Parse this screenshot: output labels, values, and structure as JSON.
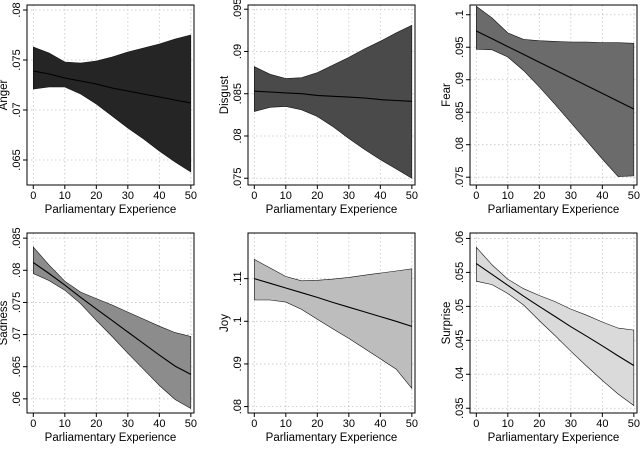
{
  "chart_data": [
    {
      "type": "line",
      "title": "",
      "xlabel": "Parliamentary Experience",
      "ylabel": "Anger",
      "xlim": [
        -2,
        51
      ],
      "ylim": [
        0.0625,
        0.0805
      ],
      "xticks": [
        0,
        10,
        20,
        30,
        40,
        50
      ],
      "xtick_labels": [
        "0",
        "10",
        "20",
        "30",
        "40",
        "50"
      ],
      "yticks": [
        0.065,
        0.07,
        0.075,
        0.08
      ],
      "ytick_labels": [
        ".065",
        ".07",
        ".075",
        ".08"
      ],
      "grid": true,
      "band_color": "#252525",
      "x": [
        0,
        5,
        10,
        15,
        20,
        25,
        30,
        35,
        40,
        45,
        50
      ],
      "y": [
        0.0739,
        0.0736,
        0.0732,
        0.0729,
        0.0726,
        0.0722,
        0.0719,
        0.0716,
        0.0713,
        0.071,
        0.0707
      ],
      "upper": [
        0.0763,
        0.0757,
        0.0748,
        0.0747,
        0.0749,
        0.0753,
        0.0758,
        0.0762,
        0.0766,
        0.0771,
        0.0775
      ],
      "lower": [
        0.0721,
        0.0723,
        0.0723,
        0.0716,
        0.0706,
        0.0694,
        0.0682,
        0.0671,
        0.0659,
        0.0648,
        0.0638
      ]
    },
    {
      "type": "line",
      "title": "",
      "xlabel": "Parliamentary Experience",
      "ylabel": "Disgust",
      "xlim": [
        -2,
        51
      ],
      "ylim": [
        0.0742,
        0.0955
      ],
      "xticks": [
        0,
        10,
        20,
        30,
        40,
        50
      ],
      "xtick_labels": [
        "0",
        "10",
        "20",
        "30",
        "40",
        "50"
      ],
      "yticks": [
        0.075,
        0.08,
        0.085,
        0.09,
        0.095
      ],
      "ytick_labels": [
        ".075",
        ".08",
        ".085",
        ".09",
        ".095"
      ],
      "grid": true,
      "band_color": "#4a4a4a",
      "x": [
        0,
        5,
        10,
        15,
        20,
        25,
        30,
        35,
        40,
        45,
        50
      ],
      "y": [
        0.0853,
        0.0852,
        0.0851,
        0.085,
        0.0848,
        0.0847,
        0.0846,
        0.0845,
        0.0843,
        0.0842,
        0.0841
      ],
      "upper": [
        0.0882,
        0.0873,
        0.0868,
        0.0869,
        0.0875,
        0.0884,
        0.0893,
        0.0903,
        0.0912,
        0.0922,
        0.0931
      ],
      "lower": [
        0.0829,
        0.0834,
        0.0835,
        0.0831,
        0.0823,
        0.0811,
        0.0797,
        0.0784,
        0.0772,
        0.0761,
        0.075
      ]
    },
    {
      "type": "line",
      "title": "",
      "xlabel": "Parliamentary Experience",
      "ylabel": "Fear",
      "xlim": [
        -2,
        51
      ],
      "ylim": [
        0.0738,
        0.1015
      ],
      "xticks": [
        0,
        10,
        20,
        30,
        40,
        50
      ],
      "xtick_labels": [
        "0",
        "10",
        "20",
        "30",
        "40",
        "50"
      ],
      "yticks": [
        0.075,
        0.08,
        0.085,
        0.09,
        0.095,
        0.1
      ],
      "ytick_labels": [
        ".075",
        ".08",
        ".085",
        ".09",
        ".095",
        ".1"
      ],
      "grid": true,
      "band_color": "#6b6b6b",
      "x": [
        0,
        5,
        10,
        15,
        20,
        25,
        30,
        35,
        40,
        45,
        50
      ],
      "y": [
        0.0975,
        0.0963,
        0.0951,
        0.0939,
        0.0927,
        0.0915,
        0.0903,
        0.0891,
        0.0879,
        0.0867,
        0.0855
      ],
      "upper": [
        0.1013,
        0.0995,
        0.0972,
        0.0962,
        0.096,
        0.0959,
        0.0958,
        0.0958,
        0.0957,
        0.0957,
        0.0956
      ],
      "lower": [
        0.0947,
        0.0946,
        0.0935,
        0.0914,
        0.0889,
        0.0862,
        0.0834,
        0.0806,
        0.0778,
        0.0751,
        0.0752
      ]
    },
    {
      "type": "line",
      "title": "",
      "xlabel": "Parliamentary Experience",
      "ylabel": "Sadness",
      "xlim": [
        -2,
        51
      ],
      "ylim": [
        0.0578,
        0.0858
      ],
      "xticks": [
        0,
        10,
        20,
        30,
        40,
        50
      ],
      "xtick_labels": [
        "0",
        "10",
        "20",
        "30",
        "40",
        "50"
      ],
      "yticks": [
        0.06,
        0.065,
        0.07,
        0.075,
        0.08,
        0.085
      ],
      "ytick_labels": [
        ".06",
        ".065",
        ".07",
        ".075",
        ".08",
        ".085"
      ],
      "grid": true,
      "band_color": "#8c8c8c",
      "x": [
        0,
        5,
        10,
        15,
        20,
        25,
        30,
        35,
        40,
        45,
        50
      ],
      "y": [
        0.0812,
        0.0795,
        0.0777,
        0.0758,
        0.074,
        0.0722,
        0.0704,
        0.0686,
        0.0668,
        0.0651,
        0.0638
      ],
      "upper": [
        0.0836,
        0.0808,
        0.0783,
        0.0766,
        0.0756,
        0.0746,
        0.0735,
        0.0724,
        0.0713,
        0.0703,
        0.0697
      ],
      "lower": [
        0.0795,
        0.0784,
        0.0769,
        0.0748,
        0.0722,
        0.0697,
        0.0671,
        0.0646,
        0.0621,
        0.0599,
        0.0585
      ]
    },
    {
      "type": "line",
      "title": "",
      "xlabel": "Parliamentary Experience",
      "ylabel": "Joy",
      "xlim": [
        -2,
        51
      ],
      "ylim": [
        0.0785,
        0.1207
      ],
      "xticks": [
        0,
        10,
        20,
        30,
        40,
        50
      ],
      "xtick_labels": [
        "0",
        "10",
        "20",
        "30",
        "40",
        "50"
      ],
      "yticks": [
        0.08,
        0.09,
        0.1,
        0.11
      ],
      "ytick_labels": [
        ".08",
        ".09",
        ".1",
        ".11"
      ],
      "grid": true,
      "band_color": "#bdbdbd",
      "x": [
        0,
        5,
        10,
        15,
        20,
        25,
        30,
        35,
        40,
        45,
        50
      ],
      "y": [
        0.11,
        0.1089,
        0.1078,
        0.1067,
        0.1056,
        0.1044,
        0.1033,
        0.1022,
        0.1011,
        0.1,
        0.0988
      ],
      "upper": [
        0.1145,
        0.1125,
        0.1105,
        0.1095,
        0.1096,
        0.1099,
        0.1103,
        0.1108,
        0.1113,
        0.1118,
        0.1123
      ],
      "lower": [
        0.105,
        0.105,
        0.1045,
        0.1028,
        0.1005,
        0.0982,
        0.096,
        0.0936,
        0.0912,
        0.0888,
        0.0843
      ]
    },
    {
      "type": "line",
      "title": "",
      "xlabel": "Parliamentary Experience",
      "ylabel": "Surprise",
      "xlim": [
        -2,
        51
      ],
      "ylim": [
        0.0343,
        0.0608
      ],
      "xticks": [
        0,
        10,
        20,
        30,
        40,
        50
      ],
      "xtick_labels": [
        "0",
        "10",
        "20",
        "30",
        "40",
        "50"
      ],
      "yticks": [
        0.035,
        0.04,
        0.045,
        0.05,
        0.055,
        0.06
      ],
      "ytick_labels": [
        ".035",
        ".04",
        ".045",
        ".05",
        ".055",
        ".06"
      ],
      "grid": true,
      "band_color": "#dadada",
      "x": [
        0,
        5,
        10,
        15,
        20,
        25,
        30,
        35,
        40,
        45,
        50
      ],
      "y": [
        0.0563,
        0.0547,
        0.0531,
        0.0515,
        0.05,
        0.0485,
        0.047,
        0.0456,
        0.0442,
        0.0427,
        0.0413
      ],
      "upper": [
        0.0587,
        0.0561,
        0.054,
        0.0526,
        0.0516,
        0.0507,
        0.0496,
        0.0487,
        0.0477,
        0.0468,
        0.0465
      ],
      "lower": [
        0.0537,
        0.0532,
        0.0519,
        0.0502,
        0.0479,
        0.0457,
        0.0434,
        0.0412,
        0.0391,
        0.0371,
        0.0354
      ]
    }
  ]
}
